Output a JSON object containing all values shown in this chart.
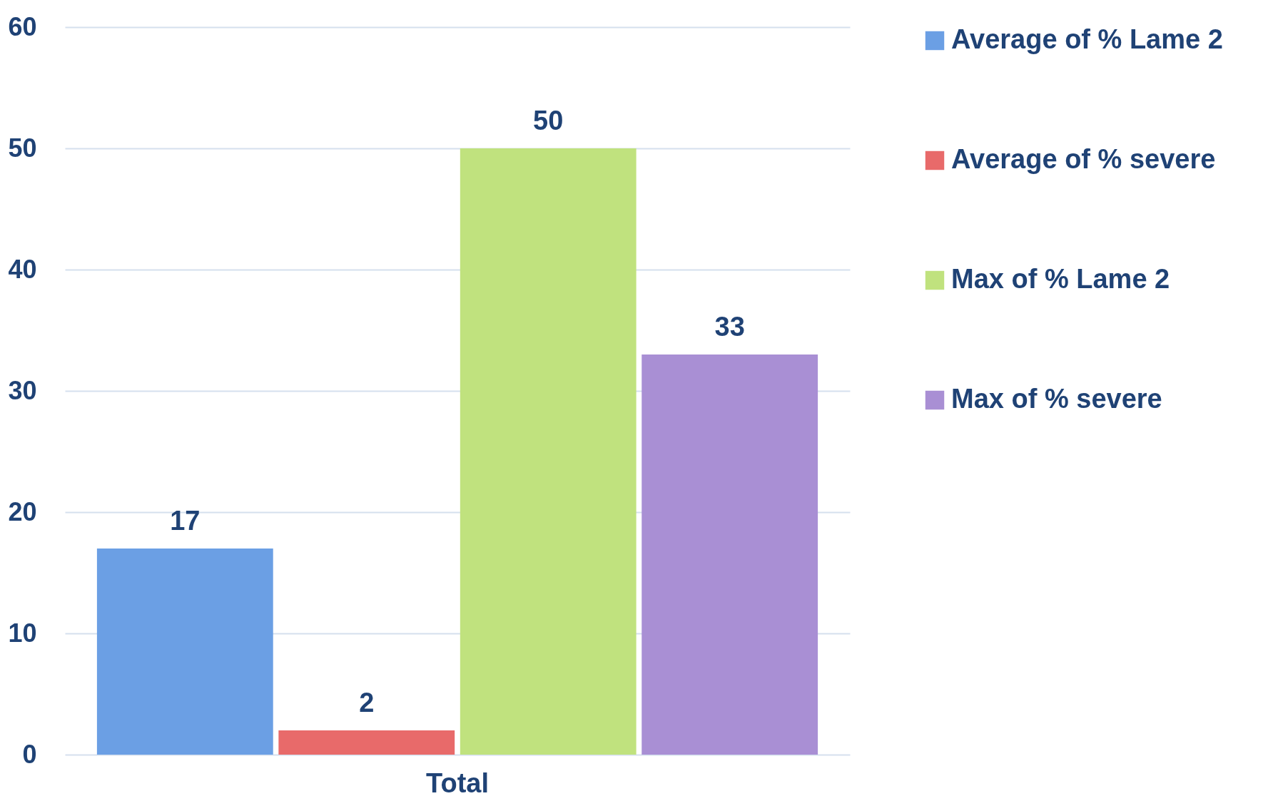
{
  "chart_data": {
    "type": "bar",
    "categories": [
      "Total"
    ],
    "series": [
      {
        "name": "Average of % Lame 2",
        "color": "#6b9fe4",
        "values": [
          17
        ]
      },
      {
        "name": "Average of  % severe",
        "color": "#e86a6a",
        "values": [
          2
        ]
      },
      {
        "name": "Max of % Lame 2",
        "color": "#c0e27e",
        "values": [
          50
        ]
      },
      {
        "name": "Max of  % severe",
        "color": "#a98fd4",
        "values": [
          33
        ]
      }
    ],
    "ylim": [
      0,
      60
    ],
    "yticks": [
      0,
      10,
      20,
      30,
      40,
      50,
      60
    ],
    "grid": "y",
    "legend": "right",
    "data_labels": true
  }
}
